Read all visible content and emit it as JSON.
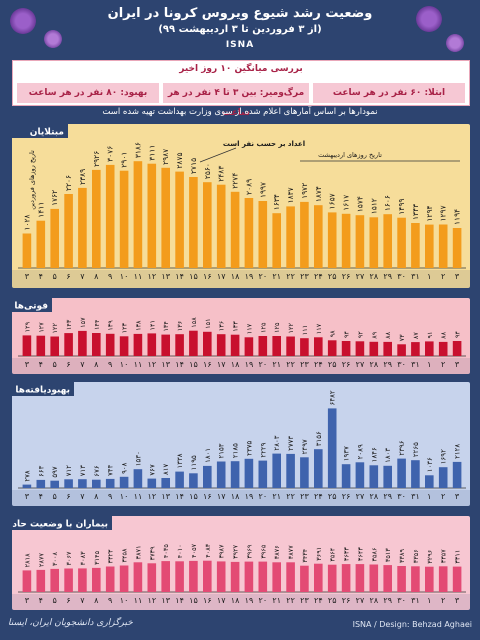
{
  "header": {
    "title": "وضعیت رشد شیوع ویروس کرونا در ایران",
    "subtitle": "(از ۳ فروردین تا ۳ اردیبهشت ۹۹)",
    "agency": "ISNA"
  },
  "summary": {
    "heading": "بررسی میانگین ۱۰ روز اخیر",
    "infection": "ابتلا: ۶۰ نفر در هر ساعت",
    "death": "مرگ‌ومیر: بین ۳ تا ۴ نفر در هر ساعت",
    "recovery": "بهبود: ۸۰ نفر در هر ساعت"
  },
  "note": "نمودارها بر اساس آمارهای اعلام شده از سوی وزارت بهداشت تهیه شده است",
  "footer": {
    "left": "خبرگزاری دانشجویان ایران، ایسنا",
    "right": "ISNA / Design: Behzad Aghaei"
  },
  "colors": {
    "background": "#2d4470",
    "cases_panel": "#f6dd9a",
    "cases_bar": "#f39c1c",
    "deaths_panel": "#f6c0c8",
    "deaths_bar": "#c8102e",
    "recovered_panel": "#c7d3ec",
    "recovered_bar": "#3f63ad",
    "critical_panel": "#f7c7d2",
    "critical_bar": "#e34a74",
    "tab": "#2d4470"
  },
  "chart_data": [
    {
      "type": "bar",
      "title": "مبتلایان",
      "annotations": [
        "تاریخ روزهای فروردین",
        "تاریخ روزهای اردیبهشت",
        "اعداد بر حسب نفر است"
      ],
      "categories": [
        "۳",
        "۴",
        "۵",
        "۶",
        "۷",
        "۸",
        "۹",
        "۱۰",
        "۱۱",
        "۱۲",
        "۱۳",
        "۱۴",
        "۱۵",
        "۱۶",
        "۱۷",
        "۱۸",
        "۱۹",
        "۲۰",
        "۲۱",
        "۲۲",
        "۲۳",
        "۲۴",
        "۲۵",
        "۲۶",
        "۲۷",
        "۲۸",
        "۲۹",
        "۳۰",
        "۳۱",
        "۱",
        "۲",
        "۳"
      ],
      "value_labels": [
        "۱۰۲۸",
        "۱۴۱۱",
        "۱۷۶۲",
        "۲۲۰۶",
        "۲۳۸۹",
        "۲۹۲۶",
        "۳۰۷۶",
        "۲۹۰۱",
        "۳۱۸۶",
        "۳۱۱۱",
        "۲۹۸۷",
        "۲۸۷۵",
        "۲۷۱۵",
        "۲۵۶۰",
        "۲۴۸۳",
        "۲۲۷۴",
        "۲۰۸۹",
        "۱۹۹۷",
        "۱۶۳۴",
        "۱۸۳۷",
        "۱۹۷۲",
        "۱۸۷۴",
        "۱۶۵۷",
        "۱۶۱۷",
        "۱۵۷۴",
        "۱۵۱۲",
        "۱۶۰۶",
        "۱۴۹۹",
        "۱۳۴۳",
        "۱۲۹۴",
        "۱۲۹۷",
        "۱۱۹۴"
      ],
      "values": [
        1028,
        1411,
        1762,
        2206,
        2389,
        2926,
        3076,
        2901,
        3186,
        3111,
        2987,
        2875,
        2715,
        2560,
        2483,
        2274,
        2089,
        1997,
        1634,
        1837,
        1972,
        1874,
        1657,
        1617,
        1574,
        1512,
        1606,
        1499,
        1343,
        1294,
        1297,
        1194
      ],
      "ylim": [
        0,
        3400
      ]
    },
    {
      "type": "bar",
      "title": "فوتی‌ها",
      "categories": [
        "۳",
        "۴",
        "۵",
        "۶",
        "۷",
        "۸",
        "۹",
        "۱۰",
        "۱۱",
        "۱۲",
        "۱۳",
        "۱۴",
        "۱۵",
        "۱۶",
        "۱۷",
        "۱۸",
        "۱۹",
        "۲۰",
        "۲۱",
        "۲۲",
        "۲۳",
        "۲۴",
        "۲۵",
        "۲۶",
        "۲۷",
        "۲۸",
        "۲۹",
        "۳۰",
        "۳۱",
        "۱",
        "۲",
        "۳"
      ],
      "value_labels": [
        "۱۲۹",
        "۱۲۷",
        "۱۲۲",
        "۱۴۳",
        "۱۵۷",
        "۱۴۴",
        "۱۳۹",
        "۱۲۳",
        "۱۳۸",
        "۱۴۱",
        "۱۳۴",
        "۱۳۶",
        "۱۵۸",
        "۱۵۱",
        "۱۳۶",
        "۱۳۳",
        "۱۱۷",
        "۱۲۵",
        "۱۲۵",
        "۱۲۲",
        "۱۱۱",
        "۱۱۷",
        "۹۸",
        "۹۴",
        "۹۲",
        "۸۹",
        "۸۸",
        "۷۳",
        "۸۷",
        "۹۱",
        "۸۸",
        "۹۴"
      ],
      "values": [
        129,
        127,
        122,
        143,
        157,
        144,
        139,
        123,
        138,
        141,
        134,
        136,
        158,
        151,
        136,
        133,
        117,
        125,
        125,
        122,
        111,
        117,
        98,
        94,
        92,
        89,
        88,
        73,
        87,
        91,
        88,
        94
      ],
      "ylim": [
        0,
        200
      ]
    },
    {
      "type": "bar",
      "title": "بهبودیافته‌ها",
      "categories": [
        "۳",
        "۴",
        "۵",
        "۶",
        "۷",
        "۸",
        "۹",
        "۱۰",
        "۱۱",
        "۱۲",
        "۱۳",
        "۱۴",
        "۱۵",
        "۱۶",
        "۱۷",
        "۱۸",
        "۱۹",
        "۲۰",
        "۲۱",
        "۲۲",
        "۲۳",
        "۲۴",
        "۲۵",
        "۲۶",
        "۲۷",
        "۲۸",
        "۲۹",
        "۳۰",
        "۳۱",
        "۱",
        "۲",
        "۳"
      ],
      "value_labels": [
        "۲۷۸",
        "۶۶۳",
        "۵۹۷",
        "۷۱۲",
        "۷۱۳",
        "۶۷۶",
        "۷۴۴",
        "۹۰۸",
        "۱۵۳۰",
        "۷۶۷",
        "۸۱۷",
        "۱۳۳۸",
        "۱۱۹۵",
        "۱۸۰۱",
        "۲۱۵۳",
        "۲۱۸۵",
        "۲۳۷۵",
        "۲۲۲۹",
        "۲۸۰۳",
        "۲۷۷۳",
        "۲۴۹۷",
        "۳۱۵۶",
        "۶۴۸۲",
        "۱۹۳۷",
        "۲۰۸۹",
        "۱۸۴۶",
        "۱۸۰۳",
        "۲۳۹۶",
        "۲۲۶۵",
        "۱۰۳۶",
        "۱۶۹۲",
        "۲۱۲۸"
      ],
      "values": [
        278,
        663,
        597,
        712,
        713,
        676,
        744,
        908,
        1530,
        767,
        817,
        1338,
        1195,
        1801,
        2153,
        2185,
        2375,
        2229,
        2803,
        2773,
        2497,
        3156,
        6482,
        1937,
        2089,
        1846,
        1803,
        2396,
        2265,
        1036,
        1692,
        2128
      ],
      "ylim": [
        0,
        7000
      ]
    },
    {
      "type": "bar",
      "title": "بیماران با وضعیت حاد",
      "categories": [
        "۳",
        "۴",
        "۵",
        "۶",
        "۷",
        "۸",
        "۹",
        "۱۰",
        "۱۱",
        "۱۲",
        "۱۳",
        "۱۴",
        "۱۵",
        "۱۶",
        "۱۷",
        "۱۸",
        "۱۹",
        "۲۰",
        "۲۱",
        "۲۲",
        "۲۳",
        "۲۴",
        "۲۵",
        "۲۶",
        "۲۷",
        "۲۸",
        "۲۹",
        "۳۰",
        "۳۱",
        "۱",
        "۲",
        "۳"
      ],
      "value_labels": [
        "۲۸۱۸",
        "۲۸۷۷",
        "۳۰۰۸",
        "۳۰۶۷",
        "۳۰۸۳",
        "۳۱۴۵",
        "۳۳۲۳",
        "۳۴۵۸",
        "۳۸۷۱",
        "۳۷۳۹",
        "۴۰۳۵",
        "۴۰۱۰",
        "۴۰۵۷",
        "۴۰۸۳",
        "۳۹۸۷",
        "۳۹۲۷",
        "۳۹۶۹",
        "۳۹۶۵",
        "۳۸۷۶",
        "۳۸۷۷",
        "۳۴۳۴",
        "۳۶۹۱",
        "۳۵۶۴",
        "۳۶۳۳",
        "۳۶۴۳",
        "۳۵۸۶",
        "۳۵۱۳",
        "۳۳۸۹",
        "۳۳۵۶",
        "۳۲۹۶",
        "۳۳۵۷",
        "۳۳۱۱"
      ],
      "values": [
        2818,
        2877,
        3008,
        3067,
        3083,
        3145,
        3323,
        3458,
        3871,
        3739,
        4035,
        4010,
        4057,
        4083,
        3987,
        3927,
        3969,
        3965,
        3876,
        3877,
        3434,
        3691,
        3564,
        3633,
        3643,
        3586,
        3513,
        3389,
        3356,
        3296,
        3357,
        3311
      ],
      "ylim": [
        0,
        6000
      ]
    }
  ]
}
